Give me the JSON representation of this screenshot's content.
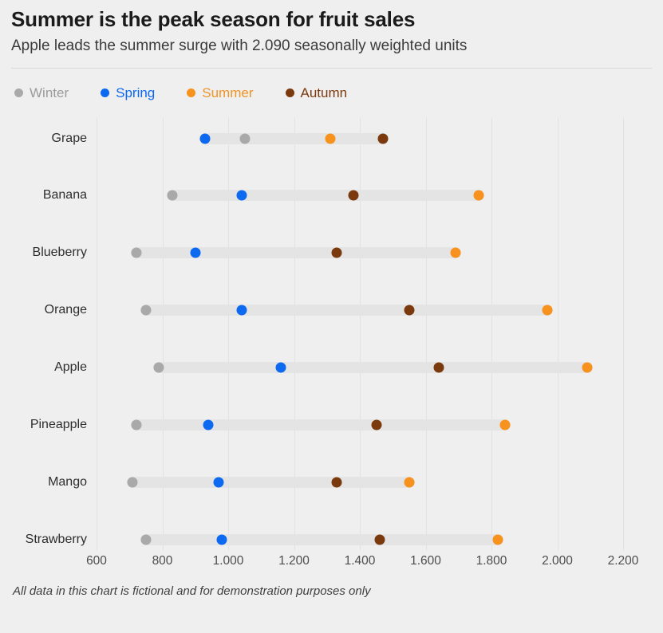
{
  "header": {
    "title": "Summer is the peak season for fruit sales",
    "subtitle": "Apple leads the summer surge with 2.090 seasonally weighted units"
  },
  "legend": {
    "items": [
      {
        "label": "Winter",
        "color": "#a9a9a9",
        "text_color": "#9b9b9b"
      },
      {
        "label": "Spring",
        "color": "#0e69f1",
        "text_color": "#0e69f1"
      },
      {
        "label": "Summer",
        "color": "#f6921d",
        "text_color": "#ef9426"
      },
      {
        "label": "Autumn",
        "color": "#7b3a0e",
        "text_color": "#7b3a0e"
      }
    ]
  },
  "chart_data": {
    "type": "scatter",
    "variant": "dot-plot-with-range-band",
    "title": "Summer is the peak season for fruit sales",
    "subtitle": "Apple leads the summer surge with 2.090 seasonally weighted units",
    "categories": [
      "Grape",
      "Banana",
      "Blueberry",
      "Orange",
      "Apple",
      "Pineapple",
      "Mango",
      "Strawberry"
    ],
    "series": [
      {
        "name": "Winter",
        "color": "#a9a9a9",
        "values": [
          1050,
          830,
          720,
          750,
          790,
          720,
          710,
          750
        ]
      },
      {
        "name": "Spring",
        "color": "#0e69f1",
        "values": [
          930,
          1040,
          900,
          1040,
          1160,
          940,
          970,
          980
        ]
      },
      {
        "name": "Summer",
        "color": "#f6921d",
        "values": [
          1310,
          1760,
          1690,
          1970,
          2090,
          1840,
          1550,
          1820
        ]
      },
      {
        "name": "Autumn",
        "color": "#7b3a0e",
        "values": [
          1470,
          1380,
          1330,
          1550,
          1640,
          1450,
          1330,
          1460
        ]
      }
    ],
    "xlim": [
      600,
      2200
    ],
    "x_ticks": [
      {
        "value": 600,
        "label": "600"
      },
      {
        "value": 800,
        "label": "800"
      },
      {
        "value": 1000,
        "label": "1.000"
      },
      {
        "value": 1200,
        "label": "1.200"
      },
      {
        "value": 1400,
        "label": "1.400"
      },
      {
        "value": 1600,
        "label": "1.600"
      },
      {
        "value": 1800,
        "label": "1.800"
      },
      {
        "value": 2000,
        "label": "2.000"
      },
      {
        "value": 2200,
        "label": "2.200"
      }
    ],
    "grid": true,
    "legend_position": "top",
    "band_color": "#e4e4e4",
    "ylabel": "",
    "xlabel": ""
  },
  "footer": {
    "note": "All data in this chart is fictional and for demonstration purposes only"
  }
}
